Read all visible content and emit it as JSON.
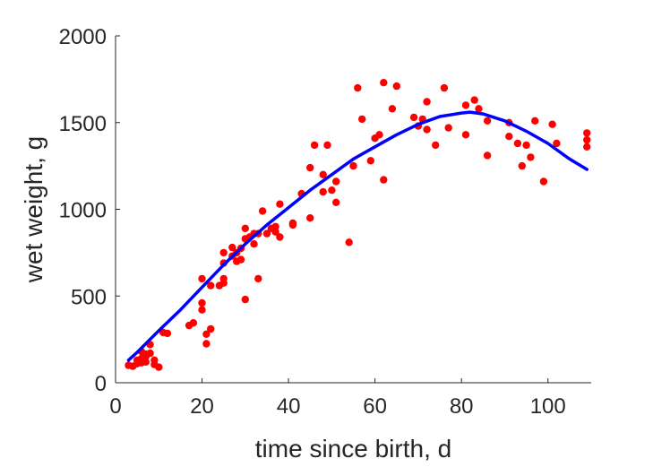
{
  "chart_data": {
    "type": "scatter",
    "title": "",
    "xlabel": "time since birth, d",
    "ylabel": "wet weight, g",
    "xlim": [
      0,
      110
    ],
    "ylim": [
      0,
      2000
    ],
    "xticks": [
      0,
      20,
      40,
      60,
      80,
      100
    ],
    "yticks": [
      0,
      500,
      1000,
      1500,
      2000
    ],
    "grid": false,
    "box": false,
    "series": [
      {
        "type": "scatter",
        "color": "#ff0000",
        "points": [
          [
            3,
            100
          ],
          [
            4,
            95
          ],
          [
            5,
            110
          ],
          [
            5,
            130
          ],
          [
            6,
            115
          ],
          [
            6,
            180
          ],
          [
            6,
            140
          ],
          [
            7,
            165
          ],
          [
            7,
            150
          ],
          [
            7,
            120
          ],
          [
            8,
            170
          ],
          [
            8,
            220
          ],
          [
            9,
            130
          ],
          [
            9,
            105
          ],
          [
            10,
            90
          ],
          [
            11,
            290
          ],
          [
            12,
            285
          ],
          [
            17,
            330
          ],
          [
            18,
            345
          ],
          [
            20,
            420
          ],
          [
            20,
            460
          ],
          [
            20,
            600
          ],
          [
            21,
            280
          ],
          [
            21,
            225
          ],
          [
            22,
            310
          ],
          [
            22,
            560
          ],
          [
            24,
            560
          ],
          [
            25,
            600
          ],
          [
            25,
            690
          ],
          [
            25,
            750
          ],
          [
            25,
            575
          ],
          [
            27,
            730
          ],
          [
            27,
            780
          ],
          [
            28,
            700
          ],
          [
            28,
            750
          ],
          [
            29,
            775
          ],
          [
            29,
            710
          ],
          [
            30,
            830
          ],
          [
            30,
            890
          ],
          [
            30,
            480
          ],
          [
            31,
            840
          ],
          [
            32,
            860
          ],
          [
            32,
            800
          ],
          [
            33,
            860
          ],
          [
            33,
            600
          ],
          [
            34,
            990
          ],
          [
            35,
            860
          ],
          [
            36,
            890
          ],
          [
            37,
            870
          ],
          [
            37,
            900
          ],
          [
            38,
            840
          ],
          [
            38,
            1030
          ],
          [
            41,
            920
          ],
          [
            41,
            910
          ],
          [
            43,
            1090
          ],
          [
            45,
            1240
          ],
          [
            45,
            950
          ],
          [
            46,
            1370
          ],
          [
            48,
            1200
          ],
          [
            48,
            1100
          ],
          [
            49,
            1370
          ],
          [
            50,
            1110
          ],
          [
            51,
            1160
          ],
          [
            51,
            1040
          ],
          [
            54,
            810
          ],
          [
            55,
            1250
          ],
          [
            56,
            1700
          ],
          [
            57,
            1520
          ],
          [
            59,
            1280
          ],
          [
            60,
            1410
          ],
          [
            61,
            1430
          ],
          [
            62,
            1730
          ],
          [
            62,
            1170
          ],
          [
            64,
            1580
          ],
          [
            65,
            1710
          ],
          [
            69,
            1530
          ],
          [
            70,
            1480
          ],
          [
            71,
            1520
          ],
          [
            72,
            1620
          ],
          [
            72,
            1460
          ],
          [
            74,
            1370
          ],
          [
            76,
            1700
          ],
          [
            77,
            1470
          ],
          [
            81,
            1430
          ],
          [
            81,
            1600
          ],
          [
            83,
            1630
          ],
          [
            84,
            1580
          ],
          [
            86,
            1510
          ],
          [
            86,
            1310
          ],
          [
            91,
            1500
          ],
          [
            91,
            1420
          ],
          [
            93,
            1380
          ],
          [
            94,
            1250
          ],
          [
            95,
            1370
          ],
          [
            96,
            1300
          ],
          [
            97,
            1510
          ],
          [
            99,
            1160
          ],
          [
            101,
            1490
          ],
          [
            102,
            1380
          ],
          [
            109,
            1440
          ],
          [
            109,
            1400
          ],
          [
            109,
            1360
          ]
        ]
      },
      {
        "type": "line",
        "color": "#0000ff",
        "points": [
          [
            3,
            130
          ],
          [
            5,
            175
          ],
          [
            10,
            300
          ],
          [
            15,
            420
          ],
          [
            20,
            550
          ],
          [
            25,
            680
          ],
          [
            30,
            800
          ],
          [
            35,
            910
          ],
          [
            40,
            1010
          ],
          [
            45,
            1110
          ],
          [
            50,
            1200
          ],
          [
            55,
            1290
          ],
          [
            60,
            1360
          ],
          [
            65,
            1430
          ],
          [
            70,
            1490
          ],
          [
            75,
            1535
          ],
          [
            80,
            1555
          ],
          [
            82,
            1560
          ],
          [
            85,
            1550
          ],
          [
            90,
            1510
          ],
          [
            95,
            1450
          ],
          [
            100,
            1380
          ],
          [
            105,
            1290
          ],
          [
            109,
            1230
          ]
        ]
      }
    ]
  }
}
